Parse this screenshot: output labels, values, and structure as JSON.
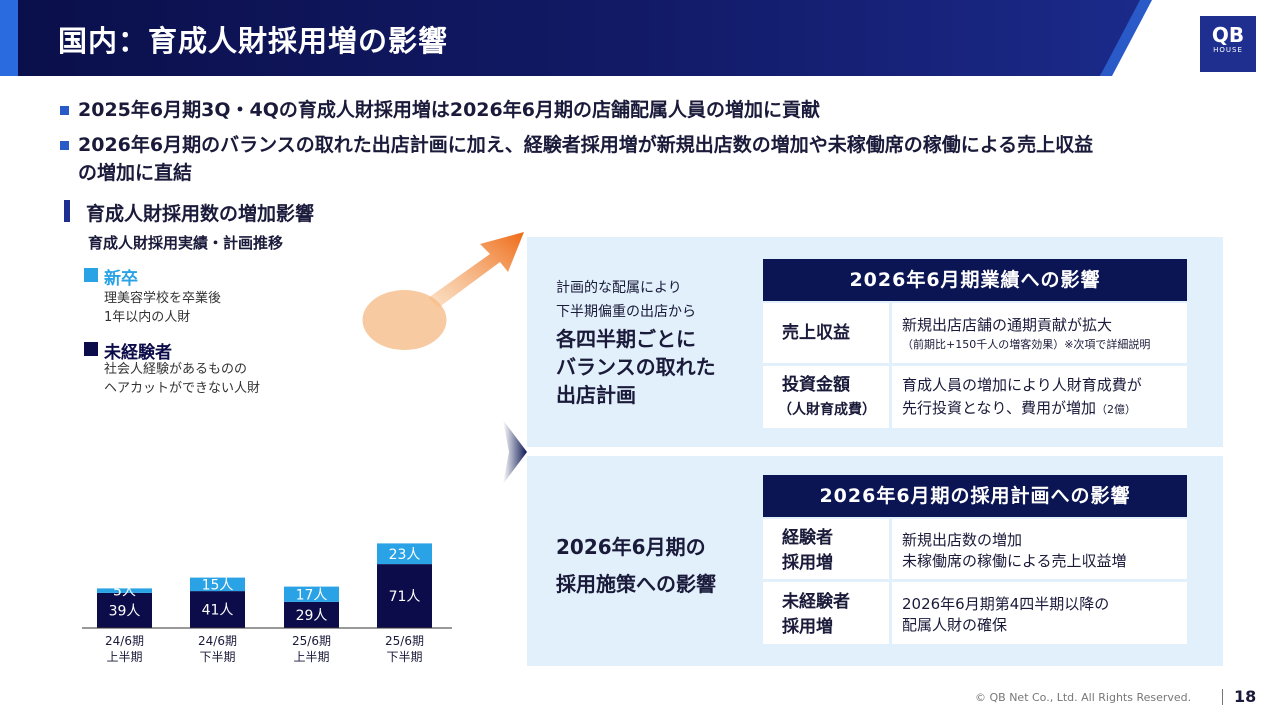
{
  "header": {
    "title": "国内：育成人財採用増の影響",
    "logo_main": "QB",
    "logo_sub": "HOUSE"
  },
  "bullets": [
    "2025年6月期3Q・4Qの育成人財採用増は2026年6月期の店舗配属人員の増加に貢献",
    "2026年6月期のバランスの取れた出店計画に加え、経験者採用増が新規出店数の増加や未稼働席の稼働による売上収益",
    "の増加に直結"
  ],
  "section": {
    "title": "育成人財採用数の増加影響",
    "subtitle": "育成人財採用実績・計画推移"
  },
  "legend": {
    "new_grad": {
      "label": "新卒",
      "desc1": "理美容学校を卒業後",
      "desc2": "1年以内の人財"
    },
    "inexperienced": {
      "label": "未経験者",
      "desc1": "社会人経験があるものの",
      "desc2": "ヘアカットができない人財"
    }
  },
  "colors": {
    "navy": "#0c0c4a",
    "light_blue": "#29a3e6",
    "header_bg": "#0c1553",
    "panel_bg": "#e1f0fa",
    "accent_orange": "#f08a30"
  },
  "chart_data": {
    "type": "bar",
    "stacked": true,
    "categories": [
      [
        "24/6期",
        "上半期"
      ],
      [
        "24/6期",
        "下半期"
      ],
      [
        "25/6期",
        "上半期"
      ],
      [
        "25/6期",
        "下半期"
      ]
    ],
    "series": [
      {
        "name": "未経験者",
        "values": [
          39,
          41,
          29,
          71
        ],
        "labels": [
          "39人",
          "41人",
          "29人",
          "71人"
        ],
        "color": "#0c0c4a"
      },
      {
        "name": "新卒",
        "values": [
          5,
          15,
          17,
          23
        ],
        "labels": [
          "5人",
          "15人",
          "17人",
          "23人"
        ],
        "color": "#29a3e6"
      }
    ],
    "ylim": [
      0,
      100
    ]
  },
  "upper_panel": {
    "small_line1": "計画的な配属により",
    "small_line2": "下半期偏重の出店から",
    "big_line1": "各四半期ごとに",
    "big_line2": "バランスの取れた",
    "big_line3": "出店計画",
    "table_title": "2026年6月期業績への影響",
    "rows": [
      {
        "label1": "売上収益",
        "label2": "",
        "desc1": "新規出店店舗の通期貢献が拡大",
        "desc2": "（前期比+150千人の増客効果）※次項で詳細説明"
      },
      {
        "label1": "投資金額",
        "label2": "（人財育成費）",
        "desc1": "育成人員の増加により人財育成費が",
        "desc2": "先行投資となり、費用が増加",
        "desc2_note": "（2億）"
      }
    ]
  },
  "lower_panel": {
    "big_line1": "2026年6月期の",
    "big_line2": "採用施策への影響",
    "table_title": "2026年6月期の採用計画への影響",
    "rows": [
      {
        "label1": "経験者",
        "label2": "採用増",
        "desc1": "新規出店数の増加",
        "desc2": "未稼働席の稼働による売上収益増"
      },
      {
        "label1": "未経験者",
        "label2": "採用増",
        "desc1": "2026年6月期第4四半期以降の",
        "desc2": "配属人財の確保"
      }
    ]
  },
  "footer": {
    "copyright": "© QB Net Co., Ltd. All Rights Reserved.",
    "page": "18"
  }
}
